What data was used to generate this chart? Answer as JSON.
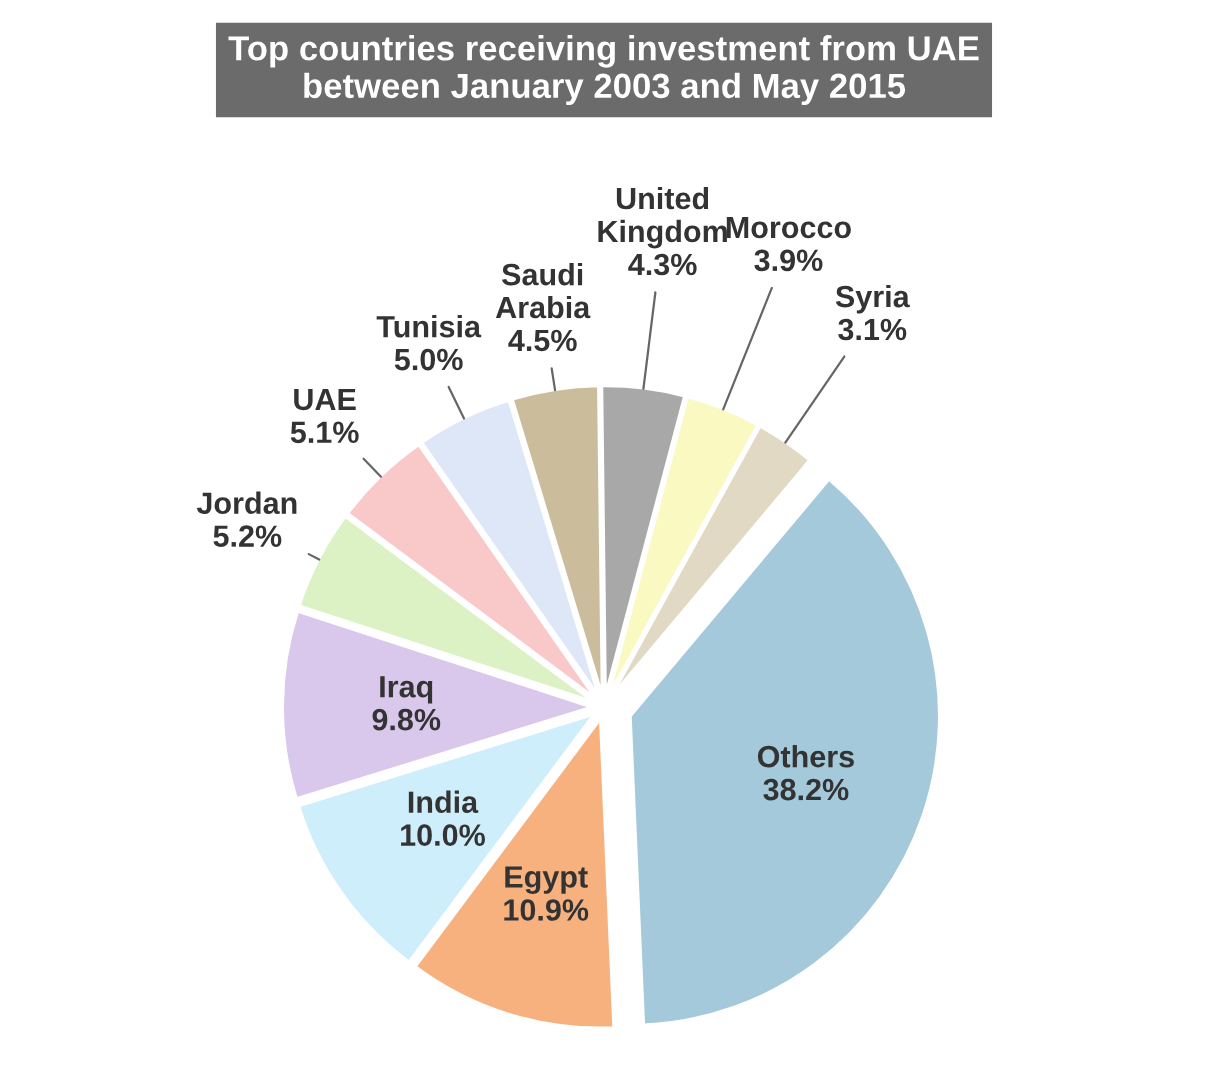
{
  "chart_data": {
    "type": "pie",
    "title": "Top countries receiving investment from UAE\nbetween January 2003 and May 2015",
    "categories": [
      "Others",
      "Egypt",
      "India",
      "Iraq",
      "Jordan",
      "UAE",
      "Tunisia",
      "Saudi\nArabia",
      "United\nKingdom",
      "Morocco",
      "Syria"
    ],
    "values": [
      38.2,
      10.9,
      10.0,
      9.8,
      5.2,
      5.1,
      5.0,
      4.5,
      4.3,
      3.9,
      3.1
    ],
    "value_labels": [
      "38.2%",
      "10.9%",
      "10.0%",
      "9.8%",
      "5.2%",
      "5.1%",
      "5.0%",
      "4.5%",
      "4.3%",
      "3.9%",
      "3.1%"
    ],
    "colors": [
      "#a3c9db",
      "#f6b17f",
      "#cdeefa",
      "#d9c8ec",
      "#dcf2c4",
      "#f9c9c9",
      "#dde7f8",
      "#cbbd9c",
      "#a8a8a8",
      "#fbf9c2",
      "#e2d9c5"
    ],
    "legend": false
  }
}
